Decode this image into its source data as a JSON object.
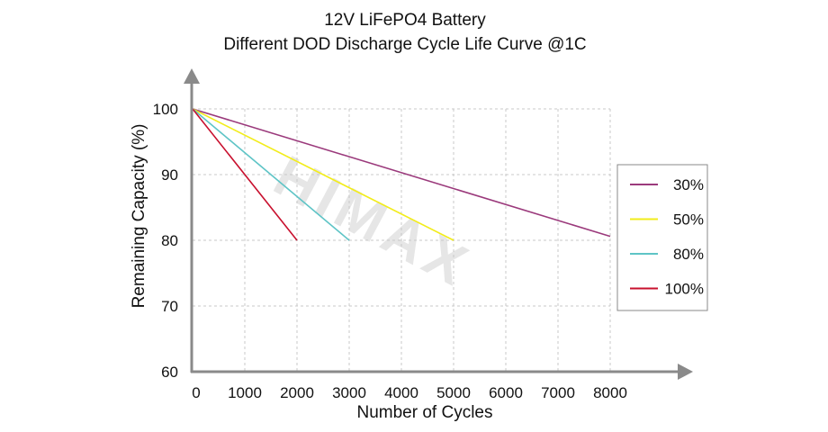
{
  "chart_data": {
    "type": "line",
    "title": "12V LiFePO4 Battery",
    "subtitle": "Different DOD Discharge Cycle Life Curve @1C",
    "xlabel": "Number of Cycles",
    "ylabel": "Remaining Capacity (%)",
    "xlim": [
      0,
      8000
    ],
    "ylim": [
      60,
      100
    ],
    "xticks": [
      0,
      1000,
      2000,
      3000,
      4000,
      5000,
      6000,
      7000,
      8000
    ],
    "yticks": [
      60,
      70,
      80,
      90,
      100
    ],
    "xtick_labels": [
      "0",
      "1000",
      "2000",
      "3000",
      "4000",
      "5000",
      "6000",
      "7000",
      "8000"
    ],
    "ytick_labels": [
      "60",
      "70",
      "80",
      "90",
      "100"
    ],
    "grid": true,
    "legend_position": "right",
    "series": [
      {
        "name": "30%",
        "color": "#9b3a7c",
        "x": [
          0,
          8000
        ],
        "y": [
          100,
          80.6
        ]
      },
      {
        "name": "50%",
        "color": "#f2ec1a",
        "x": [
          0,
          5000
        ],
        "y": [
          100,
          80
        ]
      },
      {
        "name": "80%",
        "color": "#5ec4c6",
        "x": [
          0,
          3000
        ],
        "y": [
          100,
          80
        ]
      },
      {
        "name": "100%",
        "color": "#c8102e",
        "x": [
          0,
          2000
        ],
        "y": [
          100,
          80
        ]
      }
    ],
    "watermark": "HIMAX"
  }
}
